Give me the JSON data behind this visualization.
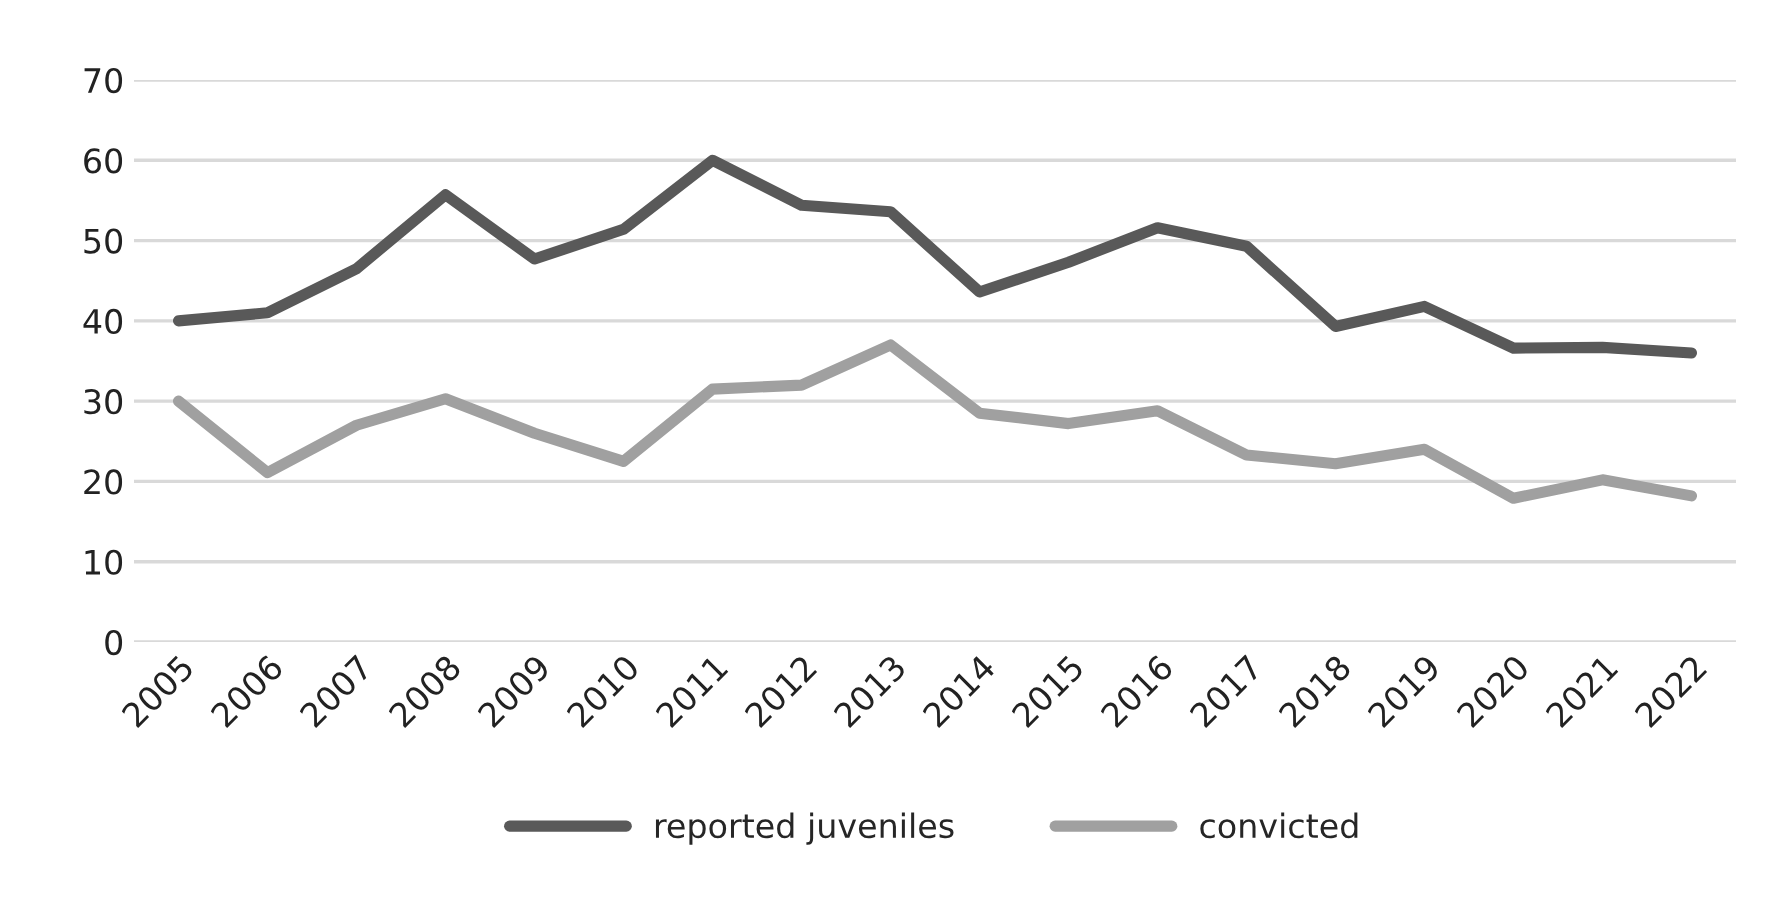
{
  "chart_data": {
    "type": "line",
    "categories": [
      "2005",
      "2006",
      "2007",
      "2008",
      "2009",
      "2010",
      "2011",
      "2012",
      "2013",
      "2014",
      "2015",
      "2016",
      "2017",
      "2018",
      "2019",
      "2020",
      "2021",
      "2022"
    ],
    "series": [
      {
        "name": "reported juveniles",
        "color": "#595959",
        "values": [
          40,
          41,
          46.5,
          55.7,
          47.7,
          51.4,
          60,
          54.4,
          53.6,
          43.6,
          47.3,
          51.6,
          49.3,
          39.3,
          41.8,
          36.6,
          36.7,
          36.0
        ]
      },
      {
        "name": "convicted",
        "color": "#a0a0a0",
        "values": [
          30,
          21.1,
          27,
          30.3,
          26,
          22.5,
          31.5,
          32,
          37,
          28.5,
          27.2,
          28.8,
          23.3,
          22.2,
          24,
          17.9,
          20.2,
          18.2
        ]
      }
    ],
    "ylim": [
      0,
      70
    ],
    "yticks": [
      0,
      10,
      20,
      30,
      40,
      50,
      60,
      70
    ],
    "grid": "y",
    "legend": "bottom",
    "marker": "none",
    "line_style": "solid"
  }
}
